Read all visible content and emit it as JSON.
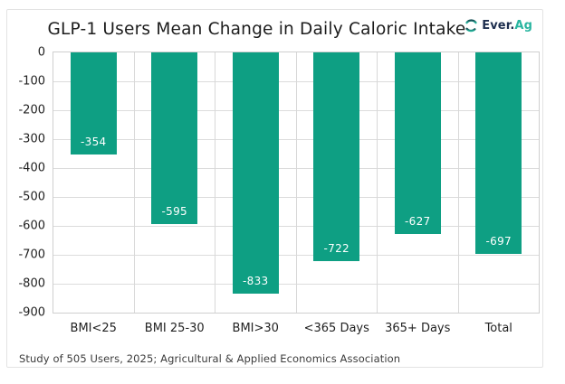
{
  "header": {
    "title": "GLP-1 Users Mean Change in Daily Caloric Intake",
    "logo": {
      "icon": "everag-globe-icon",
      "brand_primary": "Ever.",
      "brand_secondary": "Ag"
    }
  },
  "chart_data": {
    "type": "bar",
    "title": "GLP-1 Users Mean Change in Daily Caloric Intake",
    "categories": [
      "BMI<25",
      "BMI 25-30",
      "BMI>30",
      "<365 Days",
      "365+ Days",
      "Total"
    ],
    "values": [
      -354,
      -595,
      -833,
      -722,
      -627,
      -697
    ],
    "bar_labels": [
      "-354",
      "-595",
      "-833",
      "-722",
      "-627",
      "-697"
    ],
    "xlabel": "",
    "ylabel": "",
    "ylim": [
      -900,
      0
    ],
    "y_ticks": [
      0,
      -100,
      -200,
      -300,
      -400,
      -500,
      -600,
      -700,
      -800,
      -900
    ],
    "y_tick_labels": [
      "0",
      "-100",
      "-200",
      "-300",
      "-400",
      "-500",
      "-600",
      "-700",
      "-800",
      "-900"
    ],
    "grid": true,
    "legend": false,
    "bar_color": "#0e9f83",
    "bar_label_color": "#ffffff",
    "gridline_color": "#dcdcdc"
  },
  "footer": {
    "source_note": "Study of 505 Users, 2025; Agricultural & Applied Economics Association"
  },
  "colors": {
    "accent_teal": "#0e9f83",
    "brand_navy": "#1d2e4e",
    "brand_teal": "#29b5a0",
    "card_border": "#e3e3e3",
    "plot_border": "#cfcfcf"
  }
}
